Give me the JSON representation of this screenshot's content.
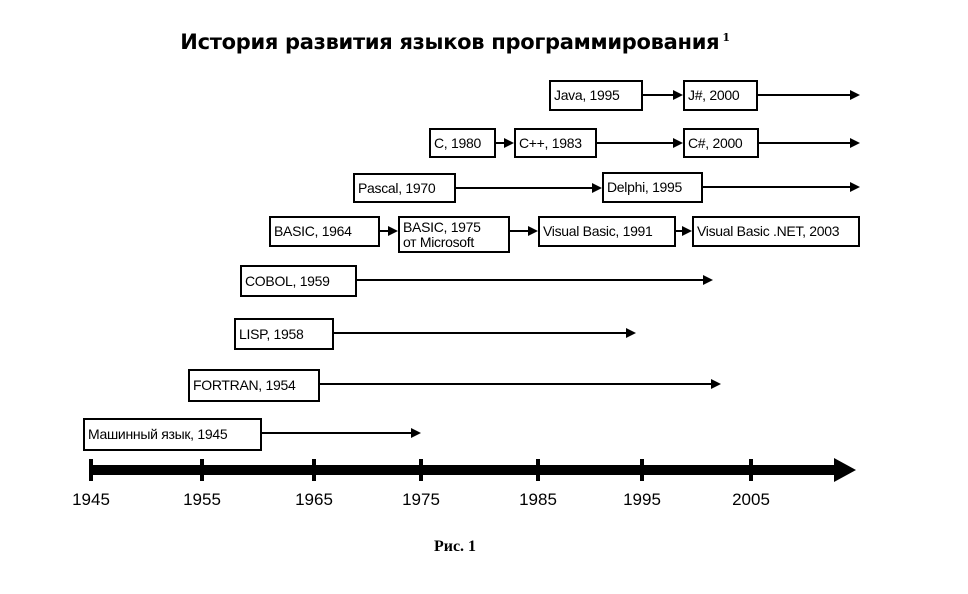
{
  "title": "История развития языков программирования",
  "title_footnote": "1",
  "caption": "Рис. 1",
  "boxes": [
    {
      "id": "java",
      "lines": [
        "Java, 1995"
      ]
    },
    {
      "id": "jsharp",
      "lines": [
        "J#, 2000"
      ]
    },
    {
      "id": "c",
      "lines": [
        "C, 1980"
      ]
    },
    {
      "id": "cpp",
      "lines": [
        "C++, 1983"
      ]
    },
    {
      "id": "csharp",
      "lines": [
        "C#, 2000"
      ]
    },
    {
      "id": "pascal",
      "lines": [
        "Pascal, 1970"
      ]
    },
    {
      "id": "delphi",
      "lines": [
        "Delphi, 1995"
      ]
    },
    {
      "id": "basic64",
      "lines": [
        "BASIC, 1964"
      ]
    },
    {
      "id": "basic75",
      "lines": [
        "BASIC, 1975",
        "от Microsoft"
      ]
    },
    {
      "id": "vb91",
      "lines": [
        "Visual Basic, 1991"
      ]
    },
    {
      "id": "vbnet",
      "lines": [
        "Visual Basic .NET, 2003"
      ]
    },
    {
      "id": "cobol",
      "lines": [
        "COBOL, 1959"
      ]
    },
    {
      "id": "lisp",
      "lines": [
        "LISP, 1958"
      ]
    },
    {
      "id": "fortran",
      "lines": [
        "FORTRAN, 1954"
      ]
    },
    {
      "id": "machine",
      "lines": [
        "Машинный язык, 1945"
      ]
    }
  ],
  "links": [
    [
      "java",
      "jsharp"
    ],
    [
      "jsharp",
      null
    ],
    [
      "c",
      "cpp"
    ],
    [
      "cpp",
      "csharp"
    ],
    [
      "csharp",
      null
    ],
    [
      "pascal",
      "delphi"
    ],
    [
      "delphi",
      null
    ],
    [
      "basic64",
      "basic75"
    ],
    [
      "basic75",
      "vb91"
    ],
    [
      "vb91",
      "vbnet"
    ],
    [
      "cobol",
      null
    ],
    [
      "lisp",
      null
    ],
    [
      "fortran",
      null
    ],
    [
      "machine",
      null
    ]
  ],
  "axis": {
    "ticks": [
      "1945",
      "1955",
      "1965",
      "1975",
      "1985",
      "1995",
      "2005"
    ]
  }
}
